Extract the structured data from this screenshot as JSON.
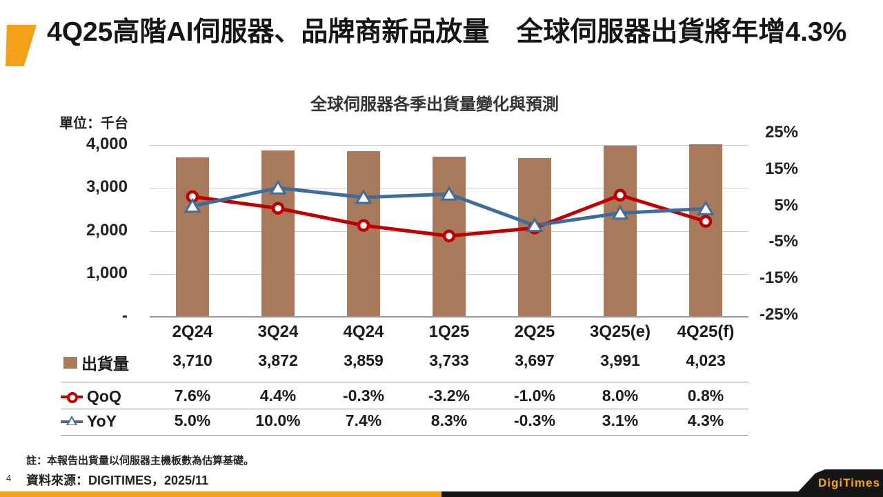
{
  "slide": {
    "title": "4Q25高階AI伺服器、品牌商新品放量　全球伺服器出貨將年增4.3%",
    "page_number": "4",
    "note": "註：本報告出貨量以伺服器主機板數為估算基礎。",
    "source": "資料來源：DIGITIMES，2025/11",
    "logo_text": "DigiTimes"
  },
  "chart_data": {
    "type": "bar",
    "subtype": "combo bar + two lines (secondary % axis)",
    "title": "全球伺服器各季出貨量變化與預測",
    "unit_label": "單位：千台",
    "categories": [
      "2Q24",
      "3Q24",
      "4Q24",
      "1Q25",
      "2Q25",
      "3Q25(e)",
      "4Q25(f)"
    ],
    "series": [
      {
        "name": "出貨量",
        "type": "bar",
        "axis": "left",
        "color": "#A8795A",
        "values": [
          3710,
          3872,
          3859,
          3733,
          3697,
          3991,
          4023
        ]
      },
      {
        "name": "QoQ",
        "type": "line",
        "axis": "right",
        "color": "#C00000",
        "marker": "circle",
        "values": [
          7.6,
          4.4,
          -0.3,
          -3.2,
          -1.0,
          8.0,
          0.8
        ]
      },
      {
        "name": "YoY",
        "type": "line",
        "axis": "right",
        "color": "#3E6D9C",
        "marker": "triangle",
        "values": [
          5.0,
          10.0,
          7.4,
          8.3,
          -0.3,
          3.1,
          4.3
        ]
      }
    ],
    "left_axis": {
      "ticks": [
        "4,000",
        "3,000",
        "2,000",
        "1,000",
        "-"
      ],
      "tick_values": [
        4000,
        3000,
        2000,
        1000,
        0
      ],
      "min": 0,
      "max": 4000
    },
    "right_axis": {
      "ticks": [
        "25%",
        "15%",
        "5%",
        "-5%",
        "-15%",
        "-25%"
      ],
      "tick_values": [
        25,
        15,
        5,
        -5,
        -15,
        -25
      ],
      "min": -25,
      "max": 25
    },
    "grid": true,
    "legend_position": "table rows at left of data table",
    "table": {
      "rows": [
        {
          "label": "出貨量",
          "values": [
            "3,710",
            "3,872",
            "3,859",
            "3,733",
            "3,697",
            "3,991",
            "4,023"
          ]
        },
        {
          "label": "QoQ",
          "values": [
            "7.6%",
            "4.4%",
            "-0.3%",
            "-3.2%",
            "-1.0%",
            "8.0%",
            "0.8%"
          ]
        },
        {
          "label": "YoY",
          "values": [
            "5.0%",
            "10.0%",
            "7.4%",
            "8.3%",
            "-0.3%",
            "3.1%",
            "4.3%"
          ]
        }
      ]
    }
  }
}
